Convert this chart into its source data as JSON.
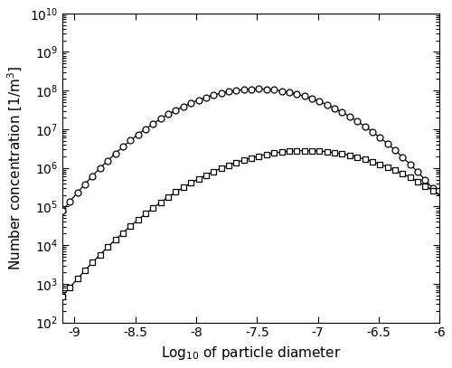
{
  "xlabel": "Log$_{10}$ of particle diameter",
  "ylabel": "Number concentration [1/m$^3$]",
  "xlim": [
    -9.1,
    -6.0
  ],
  "ylim": [
    100.0,
    10000000000.0
  ],
  "xticks": [
    -9,
    -8.5,
    -8,
    -7.5,
    -7,
    -6.5,
    -6
  ],
  "xtick_labels": [
    "-9",
    "-8.5",
    "-8",
    "-7.5",
    "-7",
    "-6.5",
    "-6"
  ],
  "circle_mean": -7.5,
  "circle_sigma": 0.42,
  "circle_amplitude": 110000000.0,
  "square_mean": -7.1,
  "square_sigma": 0.48,
  "square_amplitude": 2800000.0,
  "n_points": 400,
  "marker_every": 8,
  "circle_marker": "o",
  "square_marker": "s",
  "line_color": "#000000",
  "marker_color": "#000000",
  "background_color": "#ffffff",
  "marker_size_circle": 5,
  "marker_size_square": 4,
  "figsize": [
    5.0,
    4.07
  ],
  "dpi": 100
}
